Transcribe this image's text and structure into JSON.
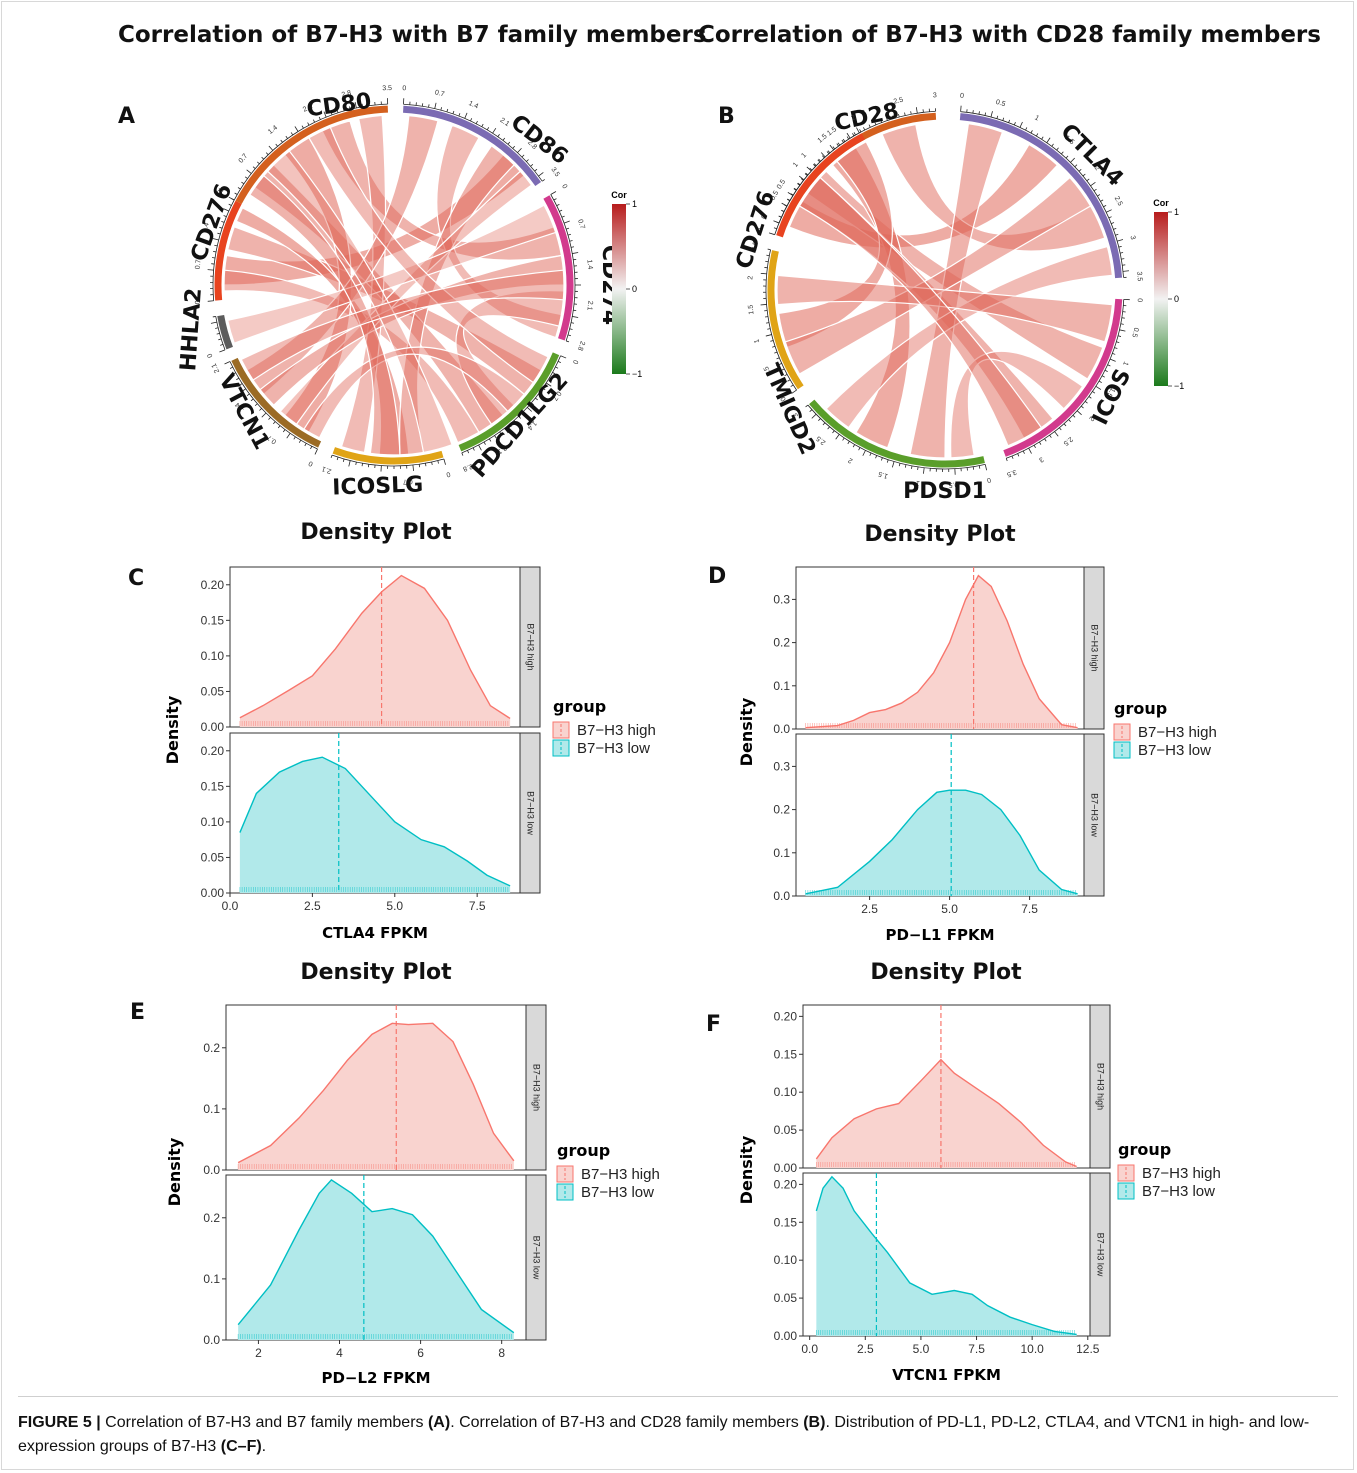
{
  "titles": {
    "chord_a": "Correlation of B7-H3 with  B7 family members",
    "chord_b": "Correlation of B7-H3 with CD28 family members",
    "density": "Density Plot"
  },
  "colorbar": {
    "title": "Cor",
    "ticks": [
      "1",
      "0",
      "−1"
    ],
    "colors": {
      "high": "#b71c1c",
      "mid": "#f2f2f2",
      "low": "#1b7a1b"
    }
  },
  "chords": [
    {
      "letter": "A",
      "sectors": [
        {
          "name": "CD80",
          "color": "#d4601e",
          "ticks": [
            "0",
            "0.7",
            "1.4",
            "2.1",
            "2.8",
            "3.5"
          ]
        },
        {
          "name": "CD86",
          "color": "#7b6bb3",
          "ticks": [
            "0",
            "0.7",
            "1.4",
            "2.1",
            "2.8",
            "3.5"
          ]
        },
        {
          "name": "CD274",
          "color": "#d23a8d",
          "ticks": [
            "0",
            "0.7",
            "1.4",
            "2.1",
            "2.8"
          ]
        },
        {
          "name": "PDCD1LG2",
          "color": "#5a9e2a",
          "ticks": [
            "0",
            "0.7",
            "1.4",
            "2.1",
            "2.8"
          ]
        },
        {
          "name": "ICOSLG",
          "color": "#e0a416",
          "ticks": [
            "0",
            "0.7",
            "1.4",
            "2.1"
          ]
        },
        {
          "name": "VTCN1",
          "color": "#9b6b25",
          "ticks": [
            "0",
            "0.7",
            "1.4",
            "2.1"
          ]
        },
        {
          "name": "HHLA2",
          "color": "#5c5c5c",
          "ticks": [
            "0"
          ]
        },
        {
          "name": "CD276",
          "color": "#e8431f",
          "ticks": [
            "0",
            "0.7",
            "1.4",
            "2.1"
          ]
        }
      ]
    },
    {
      "letter": "B",
      "sectors": [
        {
          "name": "CD28",
          "color": "#d4601e",
          "ticks": [
            "0",
            "0.5",
            "1",
            "1.5",
            "2",
            "2.5",
            "3"
          ]
        },
        {
          "name": "CTLA4",
          "color": "#7b6bb3",
          "ticks": [
            "0",
            "0.5",
            "1",
            "1.5",
            "2",
            "2.5",
            "3",
            "3.5"
          ]
        },
        {
          "name": "ICOS",
          "color": "#d23a8d",
          "ticks": [
            "0",
            "0.5",
            "1",
            "1.5",
            "2",
            "2.5",
            "3",
            "3.5"
          ]
        },
        {
          "name": "PDSD1",
          "color": "#5a9e2a",
          "ticks": [
            "0",
            "0.5",
            "1",
            "1.5",
            "2",
            "2.5",
            "3"
          ]
        },
        {
          "name": "TMIGD2",
          "color": "#e0a416",
          "ticks": [
            "0",
            "0.5",
            "1",
            "1.5",
            "2",
            "2.5"
          ]
        },
        {
          "name": "CD276",
          "color": "#e8431f",
          "ticks": [
            "0",
            "0.5",
            "1",
            "1.5",
            "2"
          ]
        }
      ]
    }
  ],
  "legend": {
    "title": "group",
    "items": [
      "B7−H3 high",
      "B7−H3 low"
    ],
    "colors": {
      "high": "#f8766d",
      "low": "#00bfc4"
    }
  },
  "chart_data": [
    {
      "type": "area",
      "panel": "C",
      "xlabel": "CTLA4 FPKM",
      "ylabel": "Density",
      "xlim": [
        0,
        8.8
      ],
      "xticks": [
        0,
        2.5,
        5,
        7.5
      ],
      "xtick_labels": [
        "0.0",
        "2.5",
        "5.0",
        "7.5"
      ],
      "ylim": [
        0,
        0.225
      ],
      "yticks": [
        0,
        0.05,
        0.1,
        0.15,
        0.2
      ],
      "ytick_labels": [
        "0.00",
        "0.05",
        "0.10",
        "0.15",
        "0.20"
      ],
      "series": [
        {
          "name": "B7−H3 high",
          "x": [
            0.3,
            1.0,
            1.8,
            2.5,
            3.2,
            4.0,
            4.6,
            5.2,
            5.9,
            6.6,
            7.3,
            7.9,
            8.5
          ],
          "y": [
            0.013,
            0.03,
            0.052,
            0.072,
            0.11,
            0.16,
            0.19,
            0.213,
            0.195,
            0.15,
            0.08,
            0.03,
            0.012
          ],
          "mean": 4.6
        },
        {
          "name": "B7−H3 low",
          "x": [
            0.3,
            0.8,
            1.5,
            2.2,
            2.8,
            3.5,
            4.2,
            5.0,
            5.8,
            6.5,
            7.2,
            7.8,
            8.5
          ],
          "y": [
            0.085,
            0.14,
            0.17,
            0.185,
            0.191,
            0.175,
            0.14,
            0.1,
            0.075,
            0.065,
            0.045,
            0.025,
            0.01
          ],
          "mean": 3.3
        }
      ]
    },
    {
      "type": "area",
      "panel": "D",
      "xlabel": "PD−L1 FPKM",
      "ylabel": "Density",
      "xlim": [
        0.2,
        9.2
      ],
      "xticks": [
        2.5,
        5,
        7.5
      ],
      "xtick_labels": [
        "2.5",
        "5.0",
        "7.5"
      ],
      "ylim": [
        0,
        0.375
      ],
      "yticks": [
        0,
        0.1,
        0.2,
        0.3
      ],
      "ytick_labels": [
        "0.0",
        "0.1",
        "0.2",
        "0.3"
      ],
      "series": [
        {
          "name": "B7−H3 high",
          "x": [
            0.5,
            1.5,
            2.0,
            2.5,
            3.0,
            3.5,
            4.0,
            4.5,
            5.0,
            5.5,
            5.9,
            6.3,
            6.8,
            7.3,
            7.8,
            8.5,
            9.0
          ],
          "y": [
            0.003,
            0.008,
            0.02,
            0.038,
            0.045,
            0.06,
            0.085,
            0.13,
            0.2,
            0.3,
            0.355,
            0.33,
            0.25,
            0.15,
            0.07,
            0.01,
            0.003
          ],
          "mean": 5.75
        },
        {
          "name": "B7−H3 low",
          "x": [
            0.5,
            1.5,
            2.5,
            3.2,
            4.0,
            4.6,
            5.0,
            5.5,
            6.0,
            6.6,
            7.2,
            7.8,
            8.5,
            9.0
          ],
          "y": [
            0.005,
            0.02,
            0.08,
            0.13,
            0.2,
            0.24,
            0.245,
            0.245,
            0.235,
            0.2,
            0.14,
            0.06,
            0.015,
            0.005
          ],
          "mean": 5.05
        }
      ]
    },
    {
      "type": "area",
      "panel": "E",
      "xlabel": "PD−L2 FPKM",
      "ylabel": "Density",
      "xlim": [
        1.2,
        8.6
      ],
      "xticks": [
        2,
        4,
        6,
        8
      ],
      "xtick_labels": [
        "2",
        "4",
        "6",
        "8"
      ],
      "ylim": [
        0,
        0.27
      ],
      "yticks": [
        0,
        0.1,
        0.2
      ],
      "ytick_labels": [
        "0.0",
        "0.1",
        "0.2"
      ],
      "series": [
        {
          "name": "B7−H3 high",
          "x": [
            1.5,
            2.3,
            3.0,
            3.6,
            4.2,
            4.8,
            5.3,
            5.7,
            6.3,
            6.8,
            7.3,
            7.8,
            8.3
          ],
          "y": [
            0.012,
            0.04,
            0.085,
            0.13,
            0.18,
            0.222,
            0.24,
            0.238,
            0.24,
            0.21,
            0.14,
            0.06,
            0.015
          ],
          "mean": 5.4
        },
        {
          "name": "B7−H3 low",
          "x": [
            1.5,
            2.3,
            3.0,
            3.5,
            3.8,
            4.3,
            4.8,
            5.3,
            5.8,
            6.3,
            6.9,
            7.5,
            8.3
          ],
          "y": [
            0.025,
            0.09,
            0.18,
            0.24,
            0.262,
            0.24,
            0.21,
            0.215,
            0.205,
            0.17,
            0.11,
            0.05,
            0.012
          ],
          "mean": 4.6
        }
      ]
    },
    {
      "type": "area",
      "panel": "F",
      "xlabel": "VTCN1 FPKM",
      "ylabel": "Density",
      "xlim": [
        -0.3,
        12.6
      ],
      "xticks": [
        0,
        2.5,
        5,
        7.5,
        10,
        12.5
      ],
      "xtick_labels": [
        "0.0",
        "2.5",
        "5.0",
        "7.5",
        "10.0",
        "12.5"
      ],
      "ylim": [
        0,
        0.215
      ],
      "yticks": [
        0,
        0.05,
        0.1,
        0.15,
        0.2
      ],
      "ytick_labels": [
        "0.00",
        "0.05",
        "0.10",
        "0.15",
        "0.20"
      ],
      "series": [
        {
          "name": "B7−H3 high",
          "x": [
            0.3,
            1.0,
            2.0,
            3.0,
            4.0,
            5.0,
            5.9,
            6.5,
            7.5,
            8.5,
            9.5,
            10.5,
            11.5,
            12.0
          ],
          "y": [
            0.012,
            0.04,
            0.065,
            0.078,
            0.085,
            0.115,
            0.143,
            0.125,
            0.105,
            0.085,
            0.06,
            0.03,
            0.008,
            0.002
          ],
          "mean": 5.9
        },
        {
          "name": "B7−H3 low",
          "x": [
            0.3,
            0.6,
            1.0,
            1.5,
            2.0,
            2.8,
            3.5,
            4.5,
            5.5,
            6.5,
            7.3,
            8.0,
            9.0,
            10.0,
            11.0,
            12.0
          ],
          "y": [
            0.165,
            0.195,
            0.21,
            0.195,
            0.165,
            0.135,
            0.11,
            0.07,
            0.055,
            0.06,
            0.055,
            0.04,
            0.025,
            0.015,
            0.006,
            0.002
          ],
          "mean": 3.0
        }
      ]
    }
  ],
  "facet_labels": [
    "B7−H3 high",
    "B7−H3 low"
  ],
  "caption": {
    "label": "FIGURE 5 |",
    "parts": [
      {
        "text": " Correlation of B7-H3 and B7 family members ",
        "bold": false
      },
      {
        "text": "(A)",
        "bold": true
      },
      {
        "text": ". Correlation of B7-H3 and CD28 family members ",
        "bold": false
      },
      {
        "text": "(B)",
        "bold": true
      },
      {
        "text": ". Distribution of PD-L1, PD-L2, CTLA4, and VTCN1 in high- and low-expression groups of B7-H3 ",
        "bold": false
      },
      {
        "text": "(C–F)",
        "bold": true
      },
      {
        "text": ".",
        "bold": false
      }
    ]
  }
}
